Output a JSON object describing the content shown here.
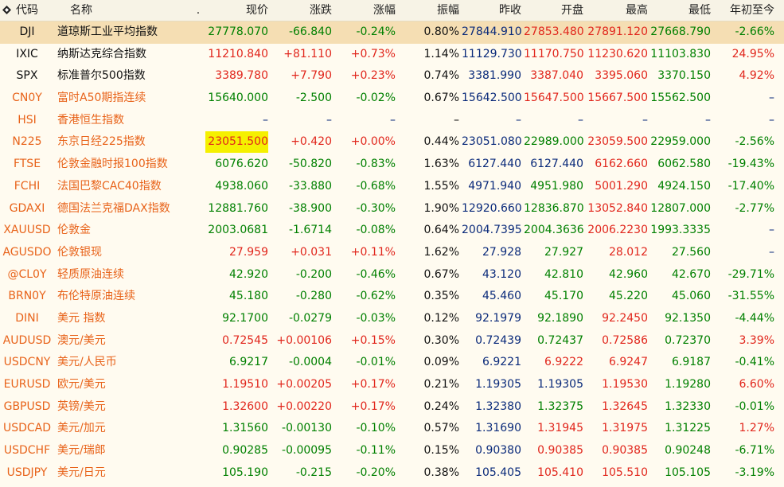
{
  "headers": {
    "code": "代码",
    "name": "名称",
    "dot": ".",
    "price": "现价",
    "chg": "涨跌",
    "pct": "涨幅",
    "amp": "振幅",
    "prev": "昨收",
    "open": "开盘",
    "high": "最高",
    "low": "最低",
    "ytd": "年初至今"
  },
  "colors": {
    "up": "#e1261c",
    "down": "#008000",
    "flat": "#0a2a7a",
    "code": "#e8631a",
    "selected": "#f5deb3",
    "highlight": "#f5f000"
  },
  "rows": [
    {
      "code": "DJI",
      "name": "道琼斯工业平均指数",
      "price": "27778.070",
      "chg": "-66.840",
      "pct": "-0.24%",
      "amp": "0.80%",
      "prev": "27844.910",
      "open": "27853.480",
      "high": "27891.120",
      "low": "27668.790",
      "ytd": "-2.66%",
      "dir": "down",
      "open_dir": "up",
      "high_dir": "up",
      "low_dir": "down",
      "ytd_dir": "down",
      "codeColor": "blk",
      "nameColor": "blk",
      "selected": true
    },
    {
      "code": "IXIC",
      "name": "纳斯达克综合指数",
      "price": "11210.840",
      "chg": "+81.110",
      "pct": "+0.73%",
      "amp": "1.14%",
      "prev": "11129.730",
      "open": "11170.750",
      "high": "11230.620",
      "low": "11103.830",
      "ytd": "24.95%",
      "dir": "up",
      "open_dir": "up",
      "high_dir": "up",
      "low_dir": "down",
      "ytd_dir": "up",
      "codeColor": "blk",
      "nameColor": "blk"
    },
    {
      "code": "SPX",
      "name": "标准普尔500指数",
      "price": "3389.780",
      "chg": "+7.790",
      "pct": "+0.23%",
      "amp": "0.74%",
      "prev": "3381.990",
      "open": "3387.040",
      "high": "3395.060",
      "low": "3370.150",
      "ytd": "4.92%",
      "dir": "up",
      "open_dir": "up",
      "high_dir": "up",
      "low_dir": "down",
      "ytd_dir": "up",
      "codeColor": "blk",
      "nameColor": "blk"
    },
    {
      "code": "CN0Y",
      "name": "富时A50期指连续",
      "price": "15640.000",
      "chg": "-2.500",
      "pct": "-0.02%",
      "amp": "0.67%",
      "prev": "15642.500",
      "open": "15647.500",
      "high": "15667.500",
      "low": "15562.500",
      "ytd": "–",
      "dir": "down",
      "open_dir": "up",
      "high_dir": "up",
      "low_dir": "down",
      "ytd_dir": "flat",
      "codeColor": "orng",
      "nameColor": "orng"
    },
    {
      "code": "HSI",
      "name": "香港恒生指数",
      "price": "–",
      "chg": "–",
      "pct": "–",
      "amp": "–",
      "prev": "–",
      "open": "–",
      "high": "–",
      "low": "–",
      "ytd": "–",
      "dir": "flat",
      "open_dir": "flat",
      "high_dir": "flat",
      "low_dir": "flat",
      "ytd_dir": "flat",
      "codeColor": "orng",
      "nameColor": "orng"
    },
    {
      "code": "N225",
      "name": "东京日经225指数",
      "price": "23051.500",
      "chg": "+0.420",
      "pct": "+0.00%",
      "amp": "0.44%",
      "prev": "23051.080",
      "open": "22989.000",
      "high": "23059.500",
      "low": "22959.000",
      "ytd": "-2.56%",
      "dir": "up",
      "open_dir": "down",
      "high_dir": "up",
      "low_dir": "down",
      "ytd_dir": "down",
      "codeColor": "orng",
      "nameColor": "orng",
      "highlight": true
    },
    {
      "code": "FTSE",
      "name": "伦敦金融时报100指数",
      "price": "6076.620",
      "chg": "-50.820",
      "pct": "-0.83%",
      "amp": "1.63%",
      "prev": "6127.440",
      "open": "6127.440",
      "high": "6162.660",
      "low": "6062.580",
      "ytd": "-19.43%",
      "dir": "down",
      "open_dir": "flat",
      "high_dir": "up",
      "low_dir": "down",
      "ytd_dir": "down",
      "codeColor": "orng",
      "nameColor": "orng"
    },
    {
      "code": "FCHI",
      "name": "法国巴黎CAC40指数",
      "price": "4938.060",
      "chg": "-33.880",
      "pct": "-0.68%",
      "amp": "1.55%",
      "prev": "4971.940",
      "open": "4951.980",
      "high": "5001.290",
      "low": "4924.150",
      "ytd": "-17.40%",
      "dir": "down",
      "open_dir": "down",
      "high_dir": "up",
      "low_dir": "down",
      "ytd_dir": "down",
      "codeColor": "orng",
      "nameColor": "orng"
    },
    {
      "code": "GDAXI",
      "name": "德国法兰克福DAX指数",
      "price": "12881.760",
      "chg": "-38.900",
      "pct": "-0.30%",
      "amp": "1.90%",
      "prev": "12920.660",
      "open": "12836.870",
      "high": "13052.840",
      "low": "12807.000",
      "ytd": "-2.77%",
      "dir": "down",
      "open_dir": "down",
      "high_dir": "up",
      "low_dir": "down",
      "ytd_dir": "down",
      "codeColor": "orng",
      "nameColor": "orng"
    },
    {
      "code": "XAUUSD",
      "name": "伦敦金",
      "price": "2003.0681",
      "chg": "-1.6714",
      "pct": "-0.08%",
      "amp": "0.64%",
      "prev": "2004.7395",
      "open": "2004.3636",
      "high": "2006.2230",
      "low": "1993.3335",
      "ytd": "–",
      "dir": "down",
      "open_dir": "down",
      "high_dir": "up",
      "low_dir": "down",
      "ytd_dir": "flat",
      "codeColor": "orng",
      "nameColor": "orng"
    },
    {
      "code": "AGUSDO",
      "name": "伦敦银现",
      "price": "27.959",
      "chg": "+0.031",
      "pct": "+0.11%",
      "amp": "1.62%",
      "prev": "27.928",
      "open": "27.927",
      "high": "28.012",
      "low": "27.560",
      "ytd": "–",
      "dir": "up",
      "open_dir": "down",
      "high_dir": "up",
      "low_dir": "down",
      "ytd_dir": "flat",
      "codeColor": "orng",
      "nameColor": "orng"
    },
    {
      "code": "@CL0Y",
      "name": "轻质原油连续",
      "price": "42.920",
      "chg": "-0.200",
      "pct": "-0.46%",
      "amp": "0.67%",
      "prev": "43.120",
      "open": "42.810",
      "high": "42.960",
      "low": "42.670",
      "ytd": "-29.71%",
      "dir": "down",
      "open_dir": "down",
      "high_dir": "down",
      "low_dir": "down",
      "ytd_dir": "down",
      "codeColor": "orng",
      "nameColor": "orng"
    },
    {
      "code": "BRN0Y",
      "name": "布伦特原油连续",
      "price": "45.180",
      "chg": "-0.280",
      "pct": "-0.62%",
      "amp": "0.35%",
      "prev": "45.460",
      "open": "45.170",
      "high": "45.220",
      "low": "45.060",
      "ytd": "-31.55%",
      "dir": "down",
      "open_dir": "down",
      "high_dir": "down",
      "low_dir": "down",
      "ytd_dir": "down",
      "codeColor": "orng",
      "nameColor": "orng"
    },
    {
      "code": "DINI",
      "name": "美元 指数",
      "price": "92.1700",
      "chg": "-0.0279",
      "pct": "-0.03%",
      "amp": "0.12%",
      "prev": "92.1979",
      "open": "92.1890",
      "high": "92.2450",
      "low": "92.1350",
      "ytd": "-4.44%",
      "dir": "down",
      "open_dir": "down",
      "high_dir": "up",
      "low_dir": "down",
      "ytd_dir": "down",
      "codeColor": "orng",
      "nameColor": "orng"
    },
    {
      "code": "AUDUSD",
      "name": "澳元/美元",
      "price": "0.72545",
      "chg": "+0.00106",
      "pct": "+0.15%",
      "amp": "0.30%",
      "prev": "0.72439",
      "open": "0.72437",
      "high": "0.72586",
      "low": "0.72370",
      "ytd": "3.39%",
      "dir": "up",
      "open_dir": "down",
      "high_dir": "up",
      "low_dir": "down",
      "ytd_dir": "up",
      "codeColor": "orng",
      "nameColor": "orng"
    },
    {
      "code": "USDCNY",
      "name": "美元/人民币",
      "price": "6.9217",
      "chg": "-0.0004",
      "pct": "-0.01%",
      "amp": "0.09%",
      "prev": "6.9221",
      "open": "6.9222",
      "high": "6.9247",
      "low": "6.9187",
      "ytd": "-0.41%",
      "dir": "down",
      "open_dir": "up",
      "high_dir": "up",
      "low_dir": "down",
      "ytd_dir": "down",
      "codeColor": "orng",
      "nameColor": "orng"
    },
    {
      "code": "EURUSD",
      "name": "欧元/美元",
      "price": "1.19510",
      "chg": "+0.00205",
      "pct": "+0.17%",
      "amp": "0.21%",
      "prev": "1.19305",
      "open": "1.19305",
      "high": "1.19530",
      "low": "1.19280",
      "ytd": "6.60%",
      "dir": "up",
      "open_dir": "flat",
      "high_dir": "up",
      "low_dir": "down",
      "ytd_dir": "up",
      "codeColor": "orng",
      "nameColor": "orng"
    },
    {
      "code": "GBPUSD",
      "name": "英镑/美元",
      "price": "1.32600",
      "chg": "+0.00220",
      "pct": "+0.17%",
      "amp": "0.24%",
      "prev": "1.32380",
      "open": "1.32375",
      "high": "1.32645",
      "low": "1.32330",
      "ytd": "-0.01%",
      "dir": "up",
      "open_dir": "down",
      "high_dir": "up",
      "low_dir": "down",
      "ytd_dir": "down",
      "codeColor": "orng",
      "nameColor": "orng"
    },
    {
      "code": "USDCAD",
      "name": "美元/加元",
      "price": "1.31560",
      "chg": "-0.00130",
      "pct": "-0.10%",
      "amp": "0.57%",
      "prev": "1.31690",
      "open": "1.31945",
      "high": "1.31975",
      "low": "1.31225",
      "ytd": "1.27%",
      "dir": "down",
      "open_dir": "up",
      "high_dir": "up",
      "low_dir": "down",
      "ytd_dir": "up",
      "codeColor": "orng",
      "nameColor": "orng"
    },
    {
      "code": "USDCHF",
      "name": "美元/瑞郎",
      "price": "0.90285",
      "chg": "-0.00095",
      "pct": "-0.11%",
      "amp": "0.15%",
      "prev": "0.90380",
      "open": "0.90385",
      "high": "0.90385",
      "low": "0.90248",
      "ytd": "-6.71%",
      "dir": "down",
      "open_dir": "up",
      "high_dir": "up",
      "low_dir": "down",
      "ytd_dir": "down",
      "codeColor": "orng",
      "nameColor": "orng"
    },
    {
      "code": "USDJPY",
      "name": "美元/日元",
      "price": "105.190",
      "chg": "-0.215",
      "pct": "-0.20%",
      "amp": "0.38%",
      "prev": "105.405",
      "open": "105.410",
      "high": "105.510",
      "low": "105.105",
      "ytd": "-3.19%",
      "dir": "down",
      "open_dir": "up",
      "high_dir": "up",
      "low_dir": "down",
      "ytd_dir": "down",
      "codeColor": "orng",
      "nameColor": "orng"
    }
  ]
}
